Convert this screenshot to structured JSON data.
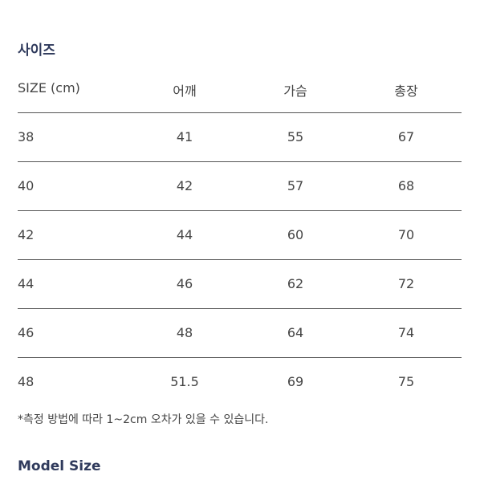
{
  "title": "사이즈",
  "table": {
    "header": [
      "SIZE (cm)",
      "어깨",
      "가슴",
      "총장"
    ],
    "rows": [
      [
        "38",
        "41",
        "55",
        "67"
      ],
      [
        "40",
        "42",
        "57",
        "68"
      ],
      [
        "42",
        "44",
        "60",
        "70"
      ],
      [
        "44",
        "46",
        "62",
        "72"
      ],
      [
        "46",
        "48",
        "64",
        "74"
      ],
      [
        "48",
        "51.5",
        "69",
        "75"
      ]
    ]
  },
  "note": "*측정 방법에 따라 1~2cm 오차가 있을 수 있습니다.",
  "model_title": "Model Size"
}
